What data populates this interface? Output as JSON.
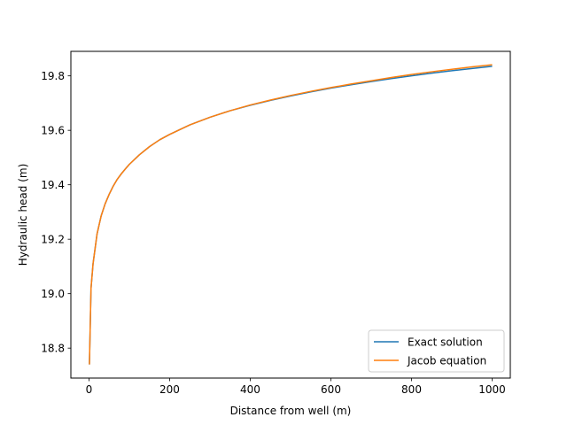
{
  "chart_data": {
    "type": "line",
    "title": "",
    "xlabel": "Distance from well (m)",
    "ylabel": "Hydraulic head (m)",
    "xlim": [
      -45,
      1045
    ],
    "ylim": [
      18.69,
      19.89
    ],
    "xticks": [
      0,
      200,
      400,
      600,
      800,
      1000
    ],
    "xtick_labels": [
      "0",
      "200",
      "400",
      "600",
      "800",
      "1000"
    ],
    "yticks": [
      18.8,
      19.0,
      19.2,
      19.4,
      19.6,
      19.8
    ],
    "ytick_labels": [
      "18.8",
      "19.0",
      "19.2",
      "19.4",
      "19.6",
      "19.8"
    ],
    "grid": false,
    "legend_position": "lower-right",
    "x": [
      1,
      5,
      10,
      20,
      30,
      40,
      50,
      60,
      70,
      80,
      90,
      100,
      125,
      150,
      175,
      200,
      250,
      300,
      350,
      400,
      450,
      500,
      550,
      600,
      650,
      700,
      750,
      800,
      850,
      900,
      950,
      1000
    ],
    "series": [
      {
        "name": "Exact solution",
        "color": "#1f77b4",
        "values": [
          18.74,
          19.02,
          19.11,
          19.22,
          19.285,
          19.33,
          19.365,
          19.395,
          19.42,
          19.44,
          19.458,
          19.475,
          19.51,
          19.54,
          19.565,
          19.585,
          19.62,
          19.648,
          19.672,
          19.692,
          19.71,
          19.726,
          19.741,
          19.755,
          19.767,
          19.779,
          19.79,
          19.8,
          19.81,
          19.819,
          19.827,
          19.835
        ]
      },
      {
        "name": "Jacob equation",
        "color": "#ff7f0e",
        "values": [
          18.74,
          19.02,
          19.11,
          19.22,
          19.285,
          19.33,
          19.365,
          19.395,
          19.42,
          19.44,
          19.458,
          19.475,
          19.51,
          19.54,
          19.565,
          19.585,
          19.62,
          19.648,
          19.672,
          19.693,
          19.711,
          19.728,
          19.743,
          19.757,
          19.77,
          19.782,
          19.794,
          19.805,
          19.815,
          19.824,
          19.833,
          19.841
        ]
      }
    ]
  }
}
